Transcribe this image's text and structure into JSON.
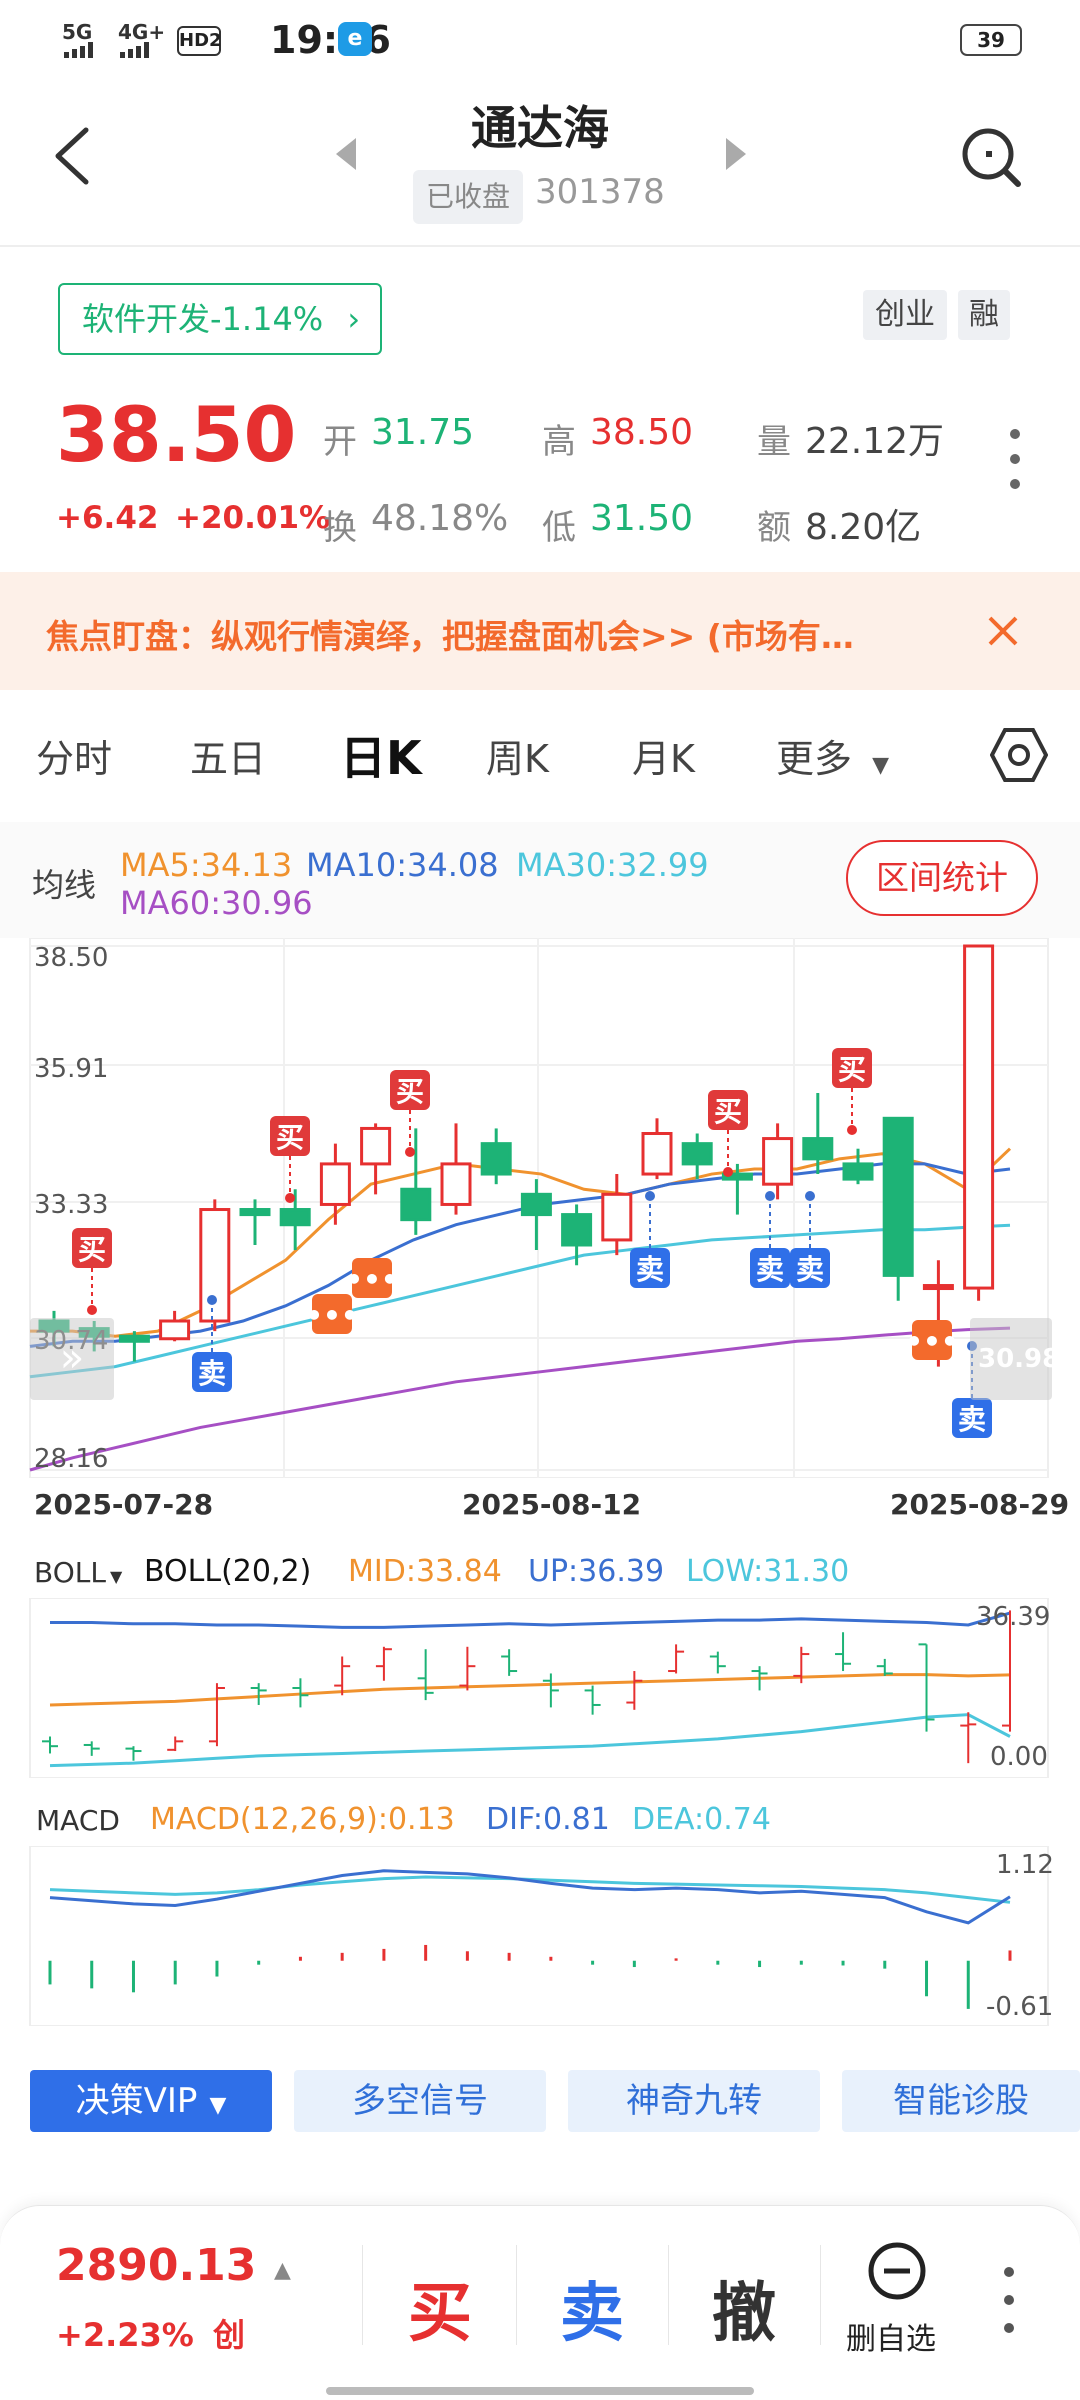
{
  "status_bar": {
    "sig1": "5G",
    "sig2": "4G+",
    "hd": "HD2",
    "time": "19:16",
    "battery": "39"
  },
  "header": {
    "title": "通达海",
    "market_status": "已收盘",
    "code": "301378"
  },
  "sector": {
    "label": "软件开发-1.14%",
    "tags": [
      "创业",
      "融"
    ]
  },
  "quote": {
    "price": "38.50",
    "change": "+6.42",
    "change_pct": "+20.01%",
    "open_label": "开",
    "open": "31.75",
    "high_label": "高",
    "high": "38.50",
    "volume_label": "量",
    "volume": "22.12万",
    "turnover_label": "换",
    "turnover": "48.18%",
    "low_label": "低",
    "low": "31.50",
    "amount_label": "额",
    "amount": "8.20亿"
  },
  "banner": {
    "text": "焦点盯盘：纵观行情演绎，把握盘面机会>> (市场有…"
  },
  "tabs": [
    "分时",
    "五日",
    "日K",
    "周K",
    "月K",
    "更多"
  ],
  "ma": {
    "label": "均线",
    "ma5": "MA5:34.13",
    "ma10": "MA10:34.08",
    "ma30": "MA30:32.99",
    "ma60": "MA60:30.96",
    "range_button": "区间统计"
  },
  "kline": {
    "y_labels": [
      "38.50",
      "35.91",
      "33.33",
      "30.74",
      "28.16"
    ],
    "price_tag": "30.98",
    "dates": [
      "2025-07-28",
      "2025-08-12",
      "2025-08-29"
    ],
    "buy_label": "买",
    "sell_label": "卖",
    "dots_label": "•••"
  },
  "boll": {
    "label": "BOLL",
    "params": "BOLL(20,2)",
    "mid": "MID:33.84",
    "up": "UP:36.39",
    "low": "LOW:31.30",
    "axis_top": "36.39",
    "axis_bottom": "0.00"
  },
  "macd": {
    "label": "MACD",
    "params": "MACD(12,26,9):0.13",
    "dif": "DIF:0.81",
    "dea": "DEA:0.74",
    "axis_top": "1.12",
    "axis_bottom": "-0.61"
  },
  "features": [
    "决策VIP",
    "多空信号",
    "神奇九转",
    "智能诊股"
  ],
  "bottom": {
    "index_value": "2890.13",
    "index_change": "+2.23%",
    "index_name": "创",
    "buy": "买",
    "sell": "卖",
    "cancel": "撤",
    "remove_watch": "删自选"
  },
  "colors": {
    "up": "#e63030",
    "down": "#1db376",
    "ma5": "#f0922e",
    "ma10": "#3a6fd0",
    "ma30": "#4cc6dc",
    "ma60": "#a64fc4",
    "accent_blue": "#2f6fe8",
    "banner_text": "#f36a2c"
  }
}
